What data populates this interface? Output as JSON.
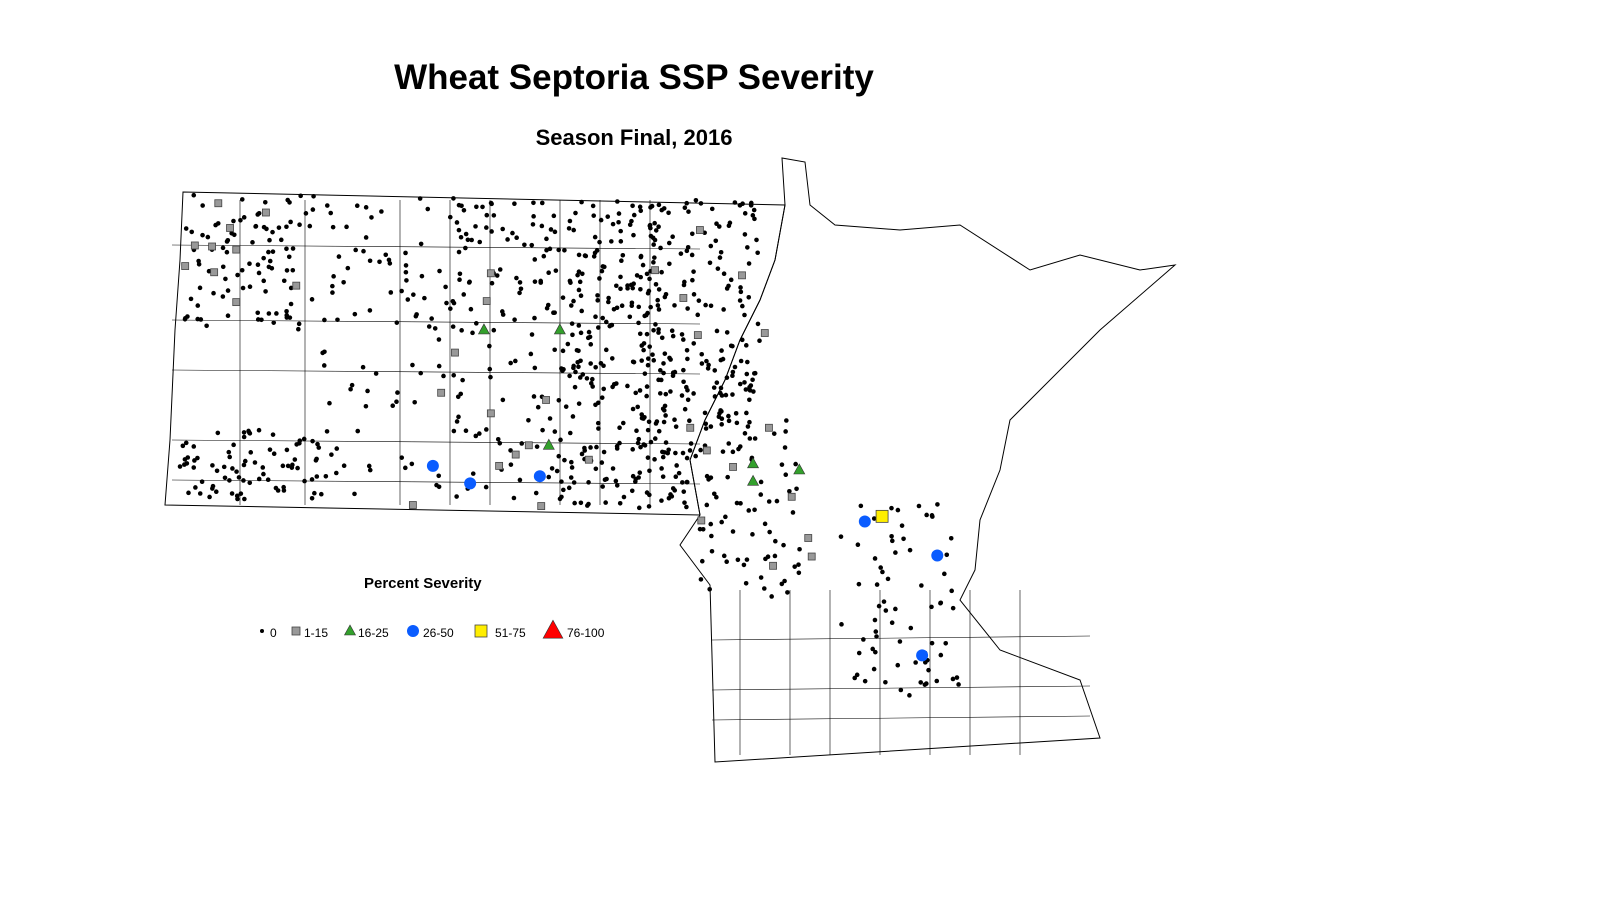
{
  "title": "Wheat Septoria SSP Severity",
  "subtitle": "Season Final, 2016",
  "legend": {
    "title": "Percent Severity",
    "items": [
      {
        "label": "0",
        "shape": "dot",
        "color": "#000000"
      },
      {
        "label": "1-15",
        "shape": "square",
        "color": "#999999"
      },
      {
        "label": "16-25",
        "shape": "triangle",
        "color": "#33a02c"
      },
      {
        "label": "26-50",
        "shape": "circle",
        "color": "#0a5cff"
      },
      {
        "label": "51-75",
        "shape": "square",
        "color": "#ffee00"
      },
      {
        "label": "76-100",
        "shape": "triangle",
        "color": "#ff0000"
      }
    ]
  },
  "markers": {
    "1-15": [
      [
        -103.35,
        48.92
      ],
      [
        -103.69,
        48.51
      ],
      [
        -103.44,
        48.5
      ],
      [
        -103.18,
        48.68
      ],
      [
        -103.09,
        48.47
      ],
      [
        -103.83,
        48.31
      ],
      [
        -103.41,
        48.25
      ],
      [
        -103.09,
        47.96
      ],
      [
        -102.66,
        48.83
      ],
      [
        -102.22,
        48.12
      ],
      [
        -99.4,
        48.24
      ],
      [
        -99.46,
        47.97
      ],
      [
        -99.92,
        47.47
      ],
      [
        -100.12,
        47.08
      ],
      [
        -99.4,
        46.88
      ],
      [
        -98.6,
        47.01
      ],
      [
        -98.85,
        46.57
      ],
      [
        -99.04,
        46.48
      ],
      [
        -99.28,
        46.37
      ],
      [
        -97.98,
        46.43
      ],
      [
        -98.67,
        45.98
      ],
      [
        -100.53,
        45.99
      ],
      [
        -97.02,
        48.27
      ],
      [
        -96.61,
        48.0
      ],
      [
        -96.37,
        48.66
      ],
      [
        -95.76,
        48.22
      ],
      [
        -95.43,
        47.66
      ],
      [
        -96.4,
        47.64
      ],
      [
        -96.51,
        46.74
      ],
      [
        -96.27,
        46.52
      ],
      [
        -95.89,
        46.36
      ],
      [
        -95.37,
        46.74
      ],
      [
        -95.04,
        46.07
      ],
      [
        -94.8,
        45.67
      ],
      [
        -94.75,
        45.49
      ],
      [
        -95.31,
        45.4
      ],
      [
        -96.35,
        45.84
      ]
    ],
    "16-25": [
      [
        -99.5,
        47.69
      ],
      [
        -98.4,
        47.69
      ],
      [
        -98.56,
        46.57
      ],
      [
        -95.6,
        46.39
      ],
      [
        -94.93,
        46.33
      ],
      [
        -95.6,
        46.22
      ]
    ],
    "26-50": [
      [
        -100.24,
        46.37
      ],
      [
        -99.7,
        46.2
      ],
      [
        -98.69,
        46.27
      ],
      [
        -93.98,
        45.83
      ],
      [
        -92.93,
        45.5
      ],
      [
        -93.15,
        44.53
      ]
    ],
    "51-75": [
      [
        -93.73,
        45.88
      ]
    ],
    "76-100": []
  }
}
